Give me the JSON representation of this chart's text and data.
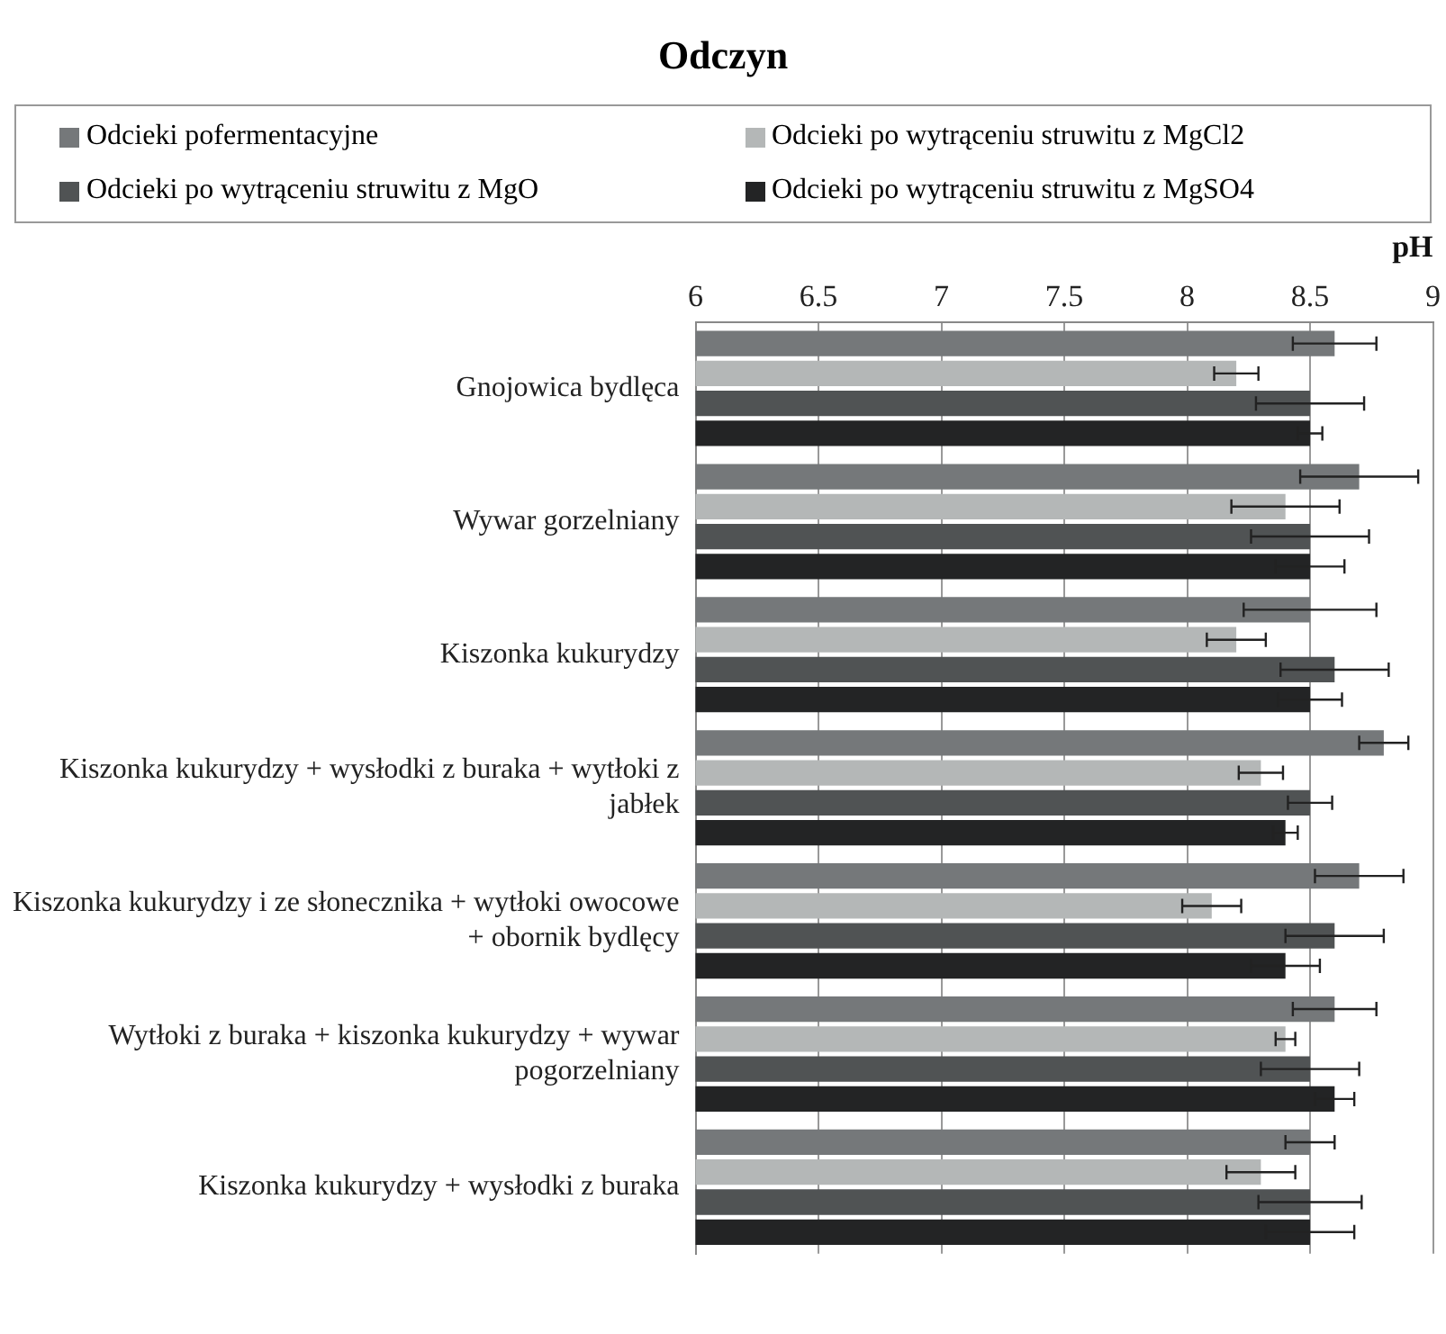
{
  "chart_data": {
    "type": "bar",
    "orientation": "horizontal",
    "title": "Odczyn",
    "xlabel": "pH",
    "categories": [
      "Gnojowica bydlęca",
      "Wywar gorzelniany",
      "Kiszonka kukurydzy",
      "Kiszonka kukurydzy + wysłodki z buraka + wytłoki z jabłek",
      "Kiszonka kukurydzy i ze słonecznika + wytłoki owocowe + obornik bydlęcy",
      "Wytłoki z buraka + kiszonka kukurydzy + wywar pogorzelniany",
      "Kiszonka kukurydzy + wysłodki z buraka"
    ],
    "series": [
      {
        "name": "Odcieki pofermentacyjne",
        "color": "#75787a",
        "values": [
          8.6,
          8.7,
          8.5,
          8.8,
          8.7,
          8.6,
          8.5
        ],
        "errors": [
          0.17,
          0.24,
          0.27,
          0.1,
          0.18,
          0.17,
          0.1
        ]
      },
      {
        "name": "Odcieki po wytrąceniu struwitu z MgCl2",
        "color": "#b4b7b7",
        "values": [
          8.2,
          8.4,
          8.2,
          8.3,
          8.1,
          8.4,
          8.3
        ],
        "errors": [
          0.09,
          0.22,
          0.12,
          0.09,
          0.12,
          0.04,
          0.14
        ]
      },
      {
        "name": "Odcieki po wytrąceniu struwitu z MgO",
        "color": "#505354",
        "values": [
          8.5,
          8.5,
          8.6,
          8.5,
          8.6,
          8.5,
          8.5
        ],
        "errors": [
          0.22,
          0.24,
          0.22,
          0.09,
          0.2,
          0.2,
          0.21
        ]
      },
      {
        "name": "Odcieki po wytrąceniu struwitu z MgSO4",
        "color": "#232425",
        "values": [
          8.5,
          8.5,
          8.5,
          8.4,
          8.4,
          8.6,
          8.5
        ],
        "errors": [
          0.05,
          0.14,
          0.13,
          0.05,
          0.14,
          0.08,
          0.18
        ]
      }
    ],
    "xlim": [
      6,
      9
    ],
    "xticks": [
      6,
      6.5,
      7,
      7.5,
      8,
      8.5,
      9
    ],
    "grid": "x",
    "legend": "top"
  }
}
